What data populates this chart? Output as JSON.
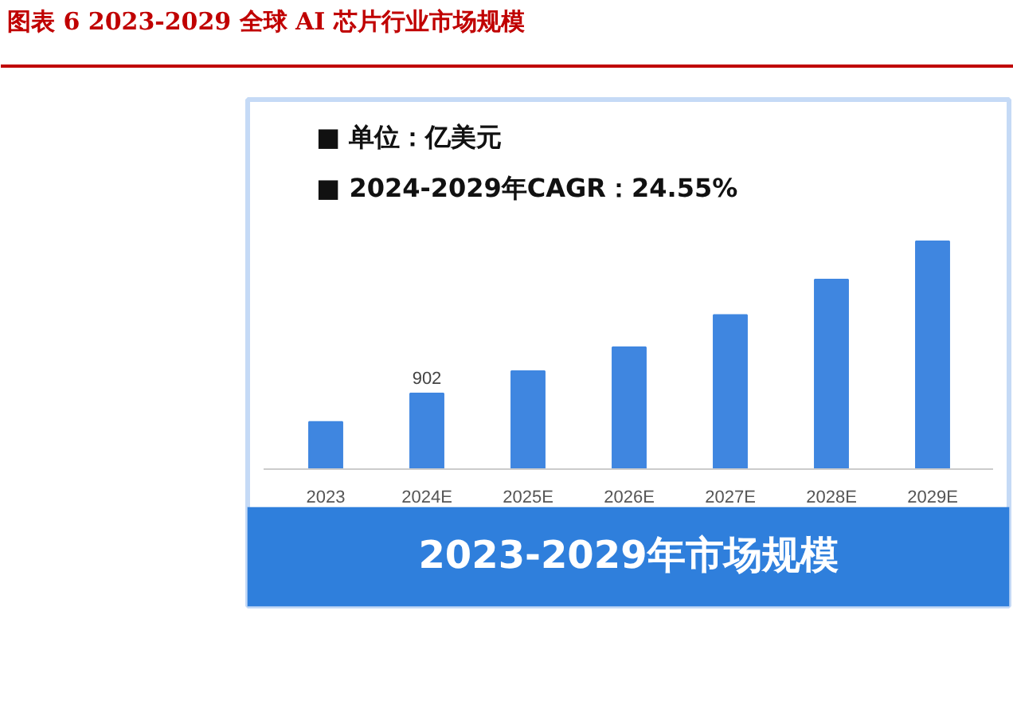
{
  "chart_data": {
    "type": "bar",
    "title": "图表 6 2023-2029 全球 AI 芯片行业市场规模",
    "subtitle": "2023-2029年市场规模",
    "annotations": [
      "■  单位：亿美元",
      "■  2024-2029年CAGR：24.55%"
    ],
    "categories": [
      "2023",
      "2024E",
      "2025E",
      "2026E",
      "2027E",
      "2028E",
      "2029E"
    ],
    "values": [
      561,
      902,
      1167,
      1451,
      1836,
      2258,
      2712
    ],
    "value_labels": [
      null,
      "902",
      null,
      null,
      null,
      null,
      null
    ],
    "color": "#3f86e0"
  }
}
